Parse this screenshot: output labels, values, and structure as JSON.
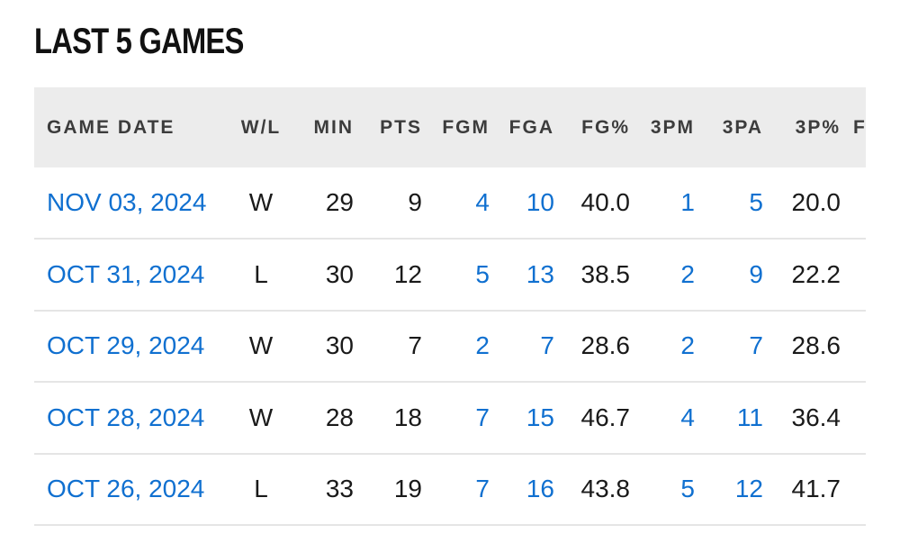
{
  "title": "LAST 5 GAMES",
  "columns": [
    "GAME DATE",
    "W/L",
    "MIN",
    "PTS",
    "FGM",
    "FGA",
    "FG%",
    "3PM",
    "3PA",
    "3P%"
  ],
  "next_column_clipped": "F",
  "rows": [
    {
      "date": "NOV 03, 2024",
      "wl": "W",
      "min": "29",
      "pts": "9",
      "fgm": "4",
      "fga": "10",
      "fgp": "40.0",
      "tpm": "1",
      "tpa": "5",
      "tpp": "20.0"
    },
    {
      "date": "OCT 31, 2024",
      "wl": "L",
      "min": "30",
      "pts": "12",
      "fgm": "5",
      "fga": "13",
      "fgp": "38.5",
      "tpm": "2",
      "tpa": "9",
      "tpp": "22.2"
    },
    {
      "date": "OCT 29, 2024",
      "wl": "W",
      "min": "30",
      "pts": "7",
      "fgm": "2",
      "fga": "7",
      "fgp": "28.6",
      "tpm": "2",
      "tpa": "7",
      "tpp": "28.6"
    },
    {
      "date": "OCT 28, 2024",
      "wl": "W",
      "min": "28",
      "pts": "18",
      "fgm": "7",
      "fga": "15",
      "fgp": "46.7",
      "tpm": "4",
      "tpa": "11",
      "tpp": "36.4"
    },
    {
      "date": "OCT 26, 2024",
      "wl": "L",
      "min": "33",
      "pts": "19",
      "fgm": "7",
      "fga": "16",
      "fgp": "43.8",
      "tpm": "5",
      "tpa": "12",
      "tpp": "41.7"
    }
  ],
  "colors": {
    "link": "#1070d0",
    "header_bg": "#ececec",
    "text": "#1a1a1a"
  }
}
